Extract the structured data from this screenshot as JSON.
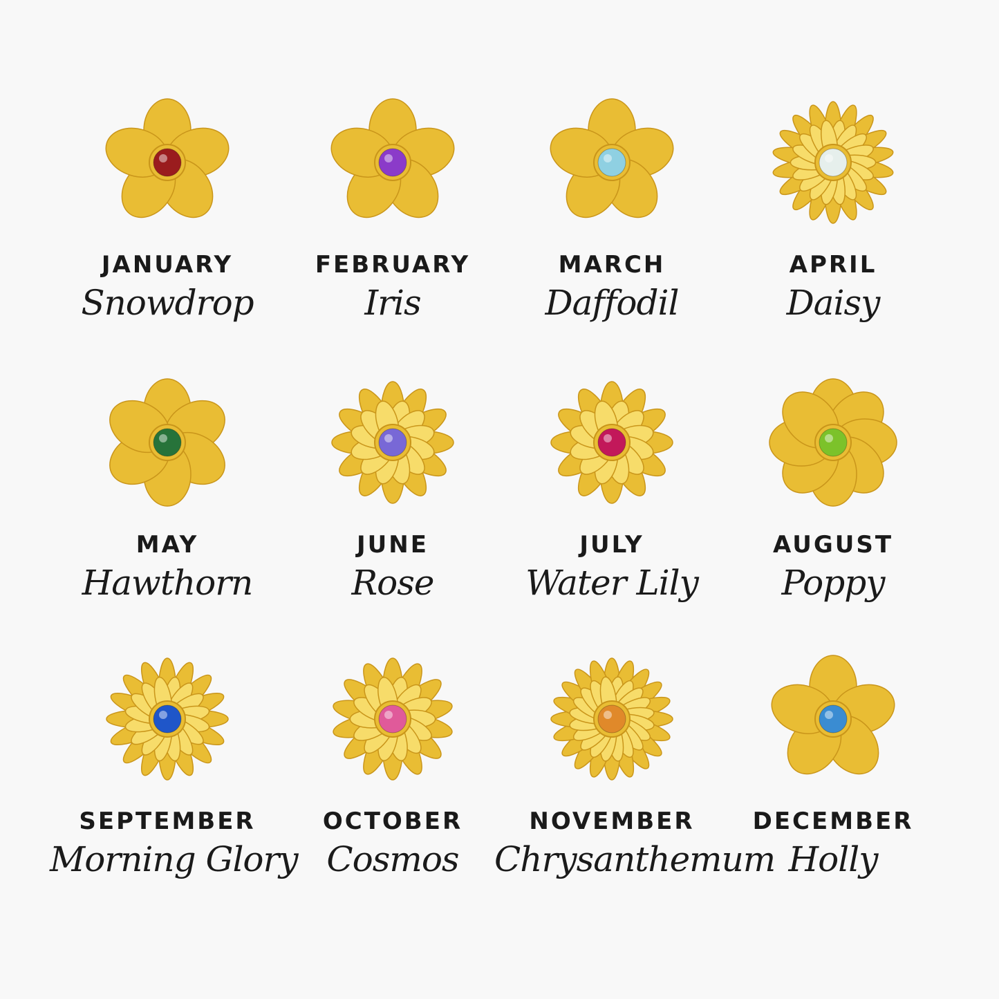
{
  "items": [
    {
      "month": "JANUARY",
      "flower": "Snowdrop",
      "gem_color": "#9a1c1e"
    },
    {
      "month": "FEBRUARY",
      "flower": "Iris",
      "gem_color": "#8b3bc9"
    },
    {
      "month": "MARCH",
      "flower": "Daffodil",
      "gem_color": "#8fd0e2"
    },
    {
      "month": "APRIL",
      "flower": "Daisy",
      "gem_color": "#e6efec"
    },
    {
      "month": "MAY",
      "flower": "Hawthorn",
      "gem_color": "#27733a"
    },
    {
      "month": "JUNE",
      "flower": "Rose",
      "gem_color": "#7868d6"
    },
    {
      "month": "JULY",
      "flower": "Water Lily",
      "gem_color": "#c2185a"
    },
    {
      "month": "AUGUST",
      "flower": "Poppy",
      "gem_color": "#7cc22a"
    },
    {
      "month": "SEPTEMBER",
      "flower": "Morning Glory",
      "gem_color": "#1f56c9"
    },
    {
      "month": "OCTOBER",
      "flower": "Cosmos",
      "gem_color": "#e05a9a"
    },
    {
      "month": "NOVEMBER",
      "flower": "Chrysanthemum",
      "gem_color": "#e0892a"
    },
    {
      "month": "DECEMBER",
      "flower": "Holly",
      "gem_color": "#3a8cd2"
    }
  ],
  "colors": {
    "gold": "#e9bd34",
    "gold_dark": "#c9951a",
    "gold_light": "#f7dc6a",
    "background": "#f8f8f8"
  }
}
